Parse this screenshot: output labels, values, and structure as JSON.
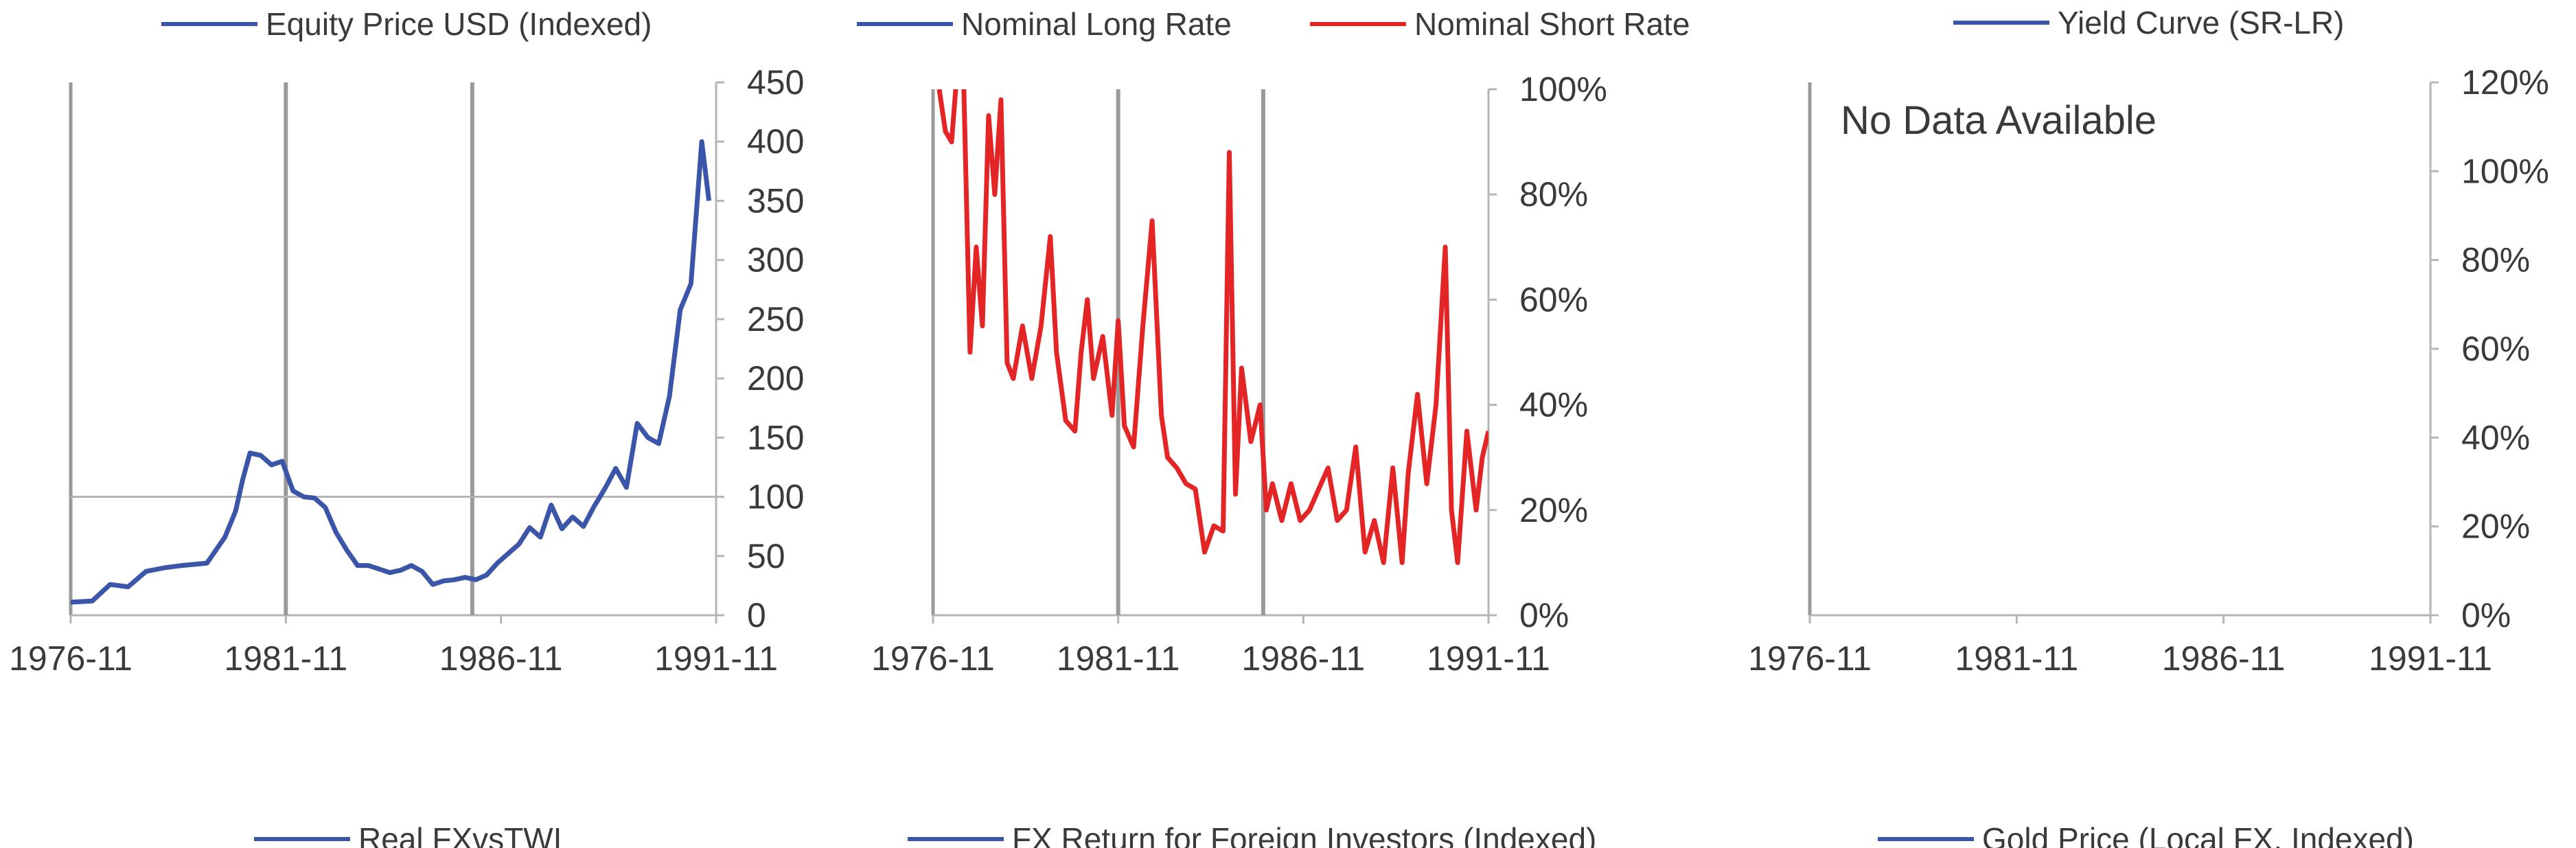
{
  "chart_data": [
    {
      "type": "line",
      "legend": [
        {
          "label": "Equity Price USD (Indexed)",
          "color": "#3b55a8"
        }
      ],
      "x_ticks": [
        "1976-11",
        "1981-11",
        "1986-11",
        "1991-11"
      ],
      "y_ticks": [
        "0",
        "50",
        "100",
        "150",
        "200",
        "250",
        "300",
        "350",
        "400",
        "450"
      ],
      "ylim": [
        0,
        450
      ],
      "xlim": [
        "1976-11",
        "1991-11"
      ],
      "y_axis_side": "right",
      "reference_line": 100,
      "vertical_markers": [
        "1981-11",
        "1986-03"
      ],
      "series": [
        {
          "color": "#3b55a8",
          "points": [
            [
              "1976-11",
              11
            ],
            [
              "1977-05",
              12
            ],
            [
              "1977-10",
              26
            ],
            [
              "1978-03",
              24
            ],
            [
              "1978-08",
              37
            ],
            [
              "1979-01",
              40
            ],
            [
              "1979-06",
              42
            ],
            [
              "1980-01",
              44
            ],
            [
              "1980-06",
              66
            ],
            [
              "1980-09",
              88
            ],
            [
              "1980-11",
              115
            ],
            [
              "1981-01",
              137
            ],
            [
              "1981-04",
              135
            ],
            [
              "1981-07",
              127
            ],
            [
              "1981-10",
              130
            ],
            [
              "1982-01",
              105
            ],
            [
              "1982-04",
              100
            ],
            [
              "1982-07",
              99
            ],
            [
              "1982-10",
              91
            ],
            [
              "1983-01",
              70
            ],
            [
              "1983-04",
              55
            ],
            [
              "1983-07",
              42
            ],
            [
              "1983-10",
              42
            ],
            [
              "1984-01",
              39
            ],
            [
              "1984-04",
              36
            ],
            [
              "1984-07",
              38
            ],
            [
              "1984-10",
              42
            ],
            [
              "1985-01",
              37
            ],
            [
              "1985-04",
              26
            ],
            [
              "1985-07",
              29
            ],
            [
              "1985-10",
              30
            ],
            [
              "1986-01",
              32
            ],
            [
              "1986-04",
              30
            ],
            [
              "1986-07",
              34
            ],
            [
              "1986-10",
              44
            ],
            [
              "1987-01",
              52
            ],
            [
              "1987-04",
              60
            ],
            [
              "1987-07",
              74
            ],
            [
              "1987-10",
              66
            ],
            [
              "1988-01",
              93
            ],
            [
              "1988-04",
              73
            ],
            [
              "1988-07",
              83
            ],
            [
              "1988-10",
              75
            ],
            [
              "1989-01",
              92
            ],
            [
              "1989-04",
              107
            ],
            [
              "1989-07",
              124
            ],
            [
              "1989-10",
              108
            ],
            [
              "1990-01",
              162
            ],
            [
              "1990-04",
              150
            ],
            [
              "1990-07",
              145
            ],
            [
              "1990-10",
              185
            ],
            [
              "1991-01",
              258
            ],
            [
              "1991-04",
              280
            ],
            [
              "1991-07",
              400
            ],
            [
              "1991-09",
              350
            ]
          ]
        }
      ]
    },
    {
      "type": "line",
      "legend": [
        {
          "label": "Nominal Long Rate",
          "color": "#3b55a8"
        },
        {
          "label": "Nominal Short Rate",
          "color": "#e32526"
        }
      ],
      "x_ticks": [
        "1976-11",
        "1981-11",
        "1986-11",
        "1991-11"
      ],
      "y_ticks": [
        "0%",
        "20%",
        "40%",
        "60%",
        "80%",
        "100%"
      ],
      "ylim": [
        0,
        100
      ],
      "xlim": [
        "1976-11",
        "1991-11"
      ],
      "y_axis_side": "right",
      "vertical_markers": [
        "1981-11",
        "1985-10"
      ],
      "series": [
        {
          "color": "#e32526",
          "points": [
            [
              "1977-01",
              100
            ],
            [
              "1977-03",
              92
            ],
            [
              "1977-05",
              90
            ],
            [
              "1977-07",
              105
            ],
            [
              "1977-09",
              100
            ],
            [
              "1977-11",
              50
            ],
            [
              "1978-01",
              70
            ],
            [
              "1978-03",
              55
            ],
            [
              "1978-05",
              95
            ],
            [
              "1978-07",
              80
            ],
            [
              "1978-09",
              98
            ],
            [
              "1978-11",
              48
            ],
            [
              "1979-01",
              45
            ],
            [
              "1979-04",
              55
            ],
            [
              "1979-07",
              45
            ],
            [
              "1979-10",
              55
            ],
            [
              "1980-01",
              72
            ],
            [
              "1980-03",
              50
            ],
            [
              "1980-06",
              37
            ],
            [
              "1980-09",
              35
            ],
            [
              "1980-11",
              50
            ],
            [
              "1981-01",
              60
            ],
            [
              "1981-03",
              45
            ],
            [
              "1981-06",
              53
            ],
            [
              "1981-09",
              38
            ],
            [
              "1981-11",
              56
            ],
            [
              "1982-01",
              36
            ],
            [
              "1982-04",
              32
            ],
            [
              "1982-07",
              55
            ],
            [
              "1982-10",
              75
            ],
            [
              "1983-01",
              38
            ],
            [
              "1983-03",
              30
            ],
            [
              "1983-06",
              28
            ],
            [
              "1983-09",
              25
            ],
            [
              "1983-12",
              24
            ],
            [
              "1984-03",
              12
            ],
            [
              "1984-06",
              17
            ],
            [
              "1984-09",
              16
            ],
            [
              "1984-11",
              88
            ],
            [
              "1985-01",
              23
            ],
            [
              "1985-03",
              47
            ],
            [
              "1985-06",
              33
            ],
            [
              "1985-09",
              40
            ],
            [
              "1985-11",
              20
            ],
            [
              "1986-01",
              25
            ],
            [
              "1986-04",
              18
            ],
            [
              "1986-07",
              25
            ],
            [
              "1986-10",
              18
            ],
            [
              "1987-01",
              20
            ],
            [
              "1987-04",
              24
            ],
            [
              "1987-07",
              28
            ],
            [
              "1987-10",
              18
            ],
            [
              "1988-01",
              20
            ],
            [
              "1988-04",
              32
            ],
            [
              "1988-07",
              12
            ],
            [
              "1988-10",
              18
            ],
            [
              "1989-01",
              10
            ],
            [
              "1989-04",
              28
            ],
            [
              "1989-07",
              10
            ],
            [
              "1989-09",
              27
            ],
            [
              "1989-12",
              42
            ],
            [
              "1990-03",
              25
            ],
            [
              "1990-06",
              40
            ],
            [
              "1990-09",
              70
            ],
            [
              "1990-11",
              20
            ],
            [
              "1991-01",
              10
            ],
            [
              "1991-04",
              35
            ],
            [
              "1991-07",
              20
            ],
            [
              "1991-09",
              30
            ],
            [
              "1991-11",
              35
            ]
          ]
        }
      ]
    },
    {
      "type": "line",
      "legend": [
        {
          "label": "Yield Curve (SR-LR)",
          "color": "#3b55a8"
        }
      ],
      "x_ticks": [
        "1976-11",
        "1981-11",
        "1986-11",
        "1991-11"
      ],
      "y_ticks": [
        "0%",
        "20%",
        "40%",
        "60%",
        "80%",
        "100%",
        "120%"
      ],
      "ylim": [
        0,
        120
      ],
      "xlim": [
        "1976-11",
        "1991-11"
      ],
      "y_axis_side": "right",
      "annotation": "No Data Available",
      "series": []
    },
    {
      "type": "line",
      "legend": [
        {
          "label": "Real FXvsTWI",
          "color": "#3b55a8"
        }
      ],
      "series": []
    },
    {
      "type": "line",
      "legend": [
        {
          "label": "FX Return for Foreign Investors (Indexed)",
          "color": "#3b55a8"
        }
      ],
      "series": []
    },
    {
      "type": "line",
      "legend": [
        {
          "label": "Gold Price (Local FX, Indexed)",
          "color": "#3b55a8"
        }
      ],
      "series": []
    }
  ]
}
